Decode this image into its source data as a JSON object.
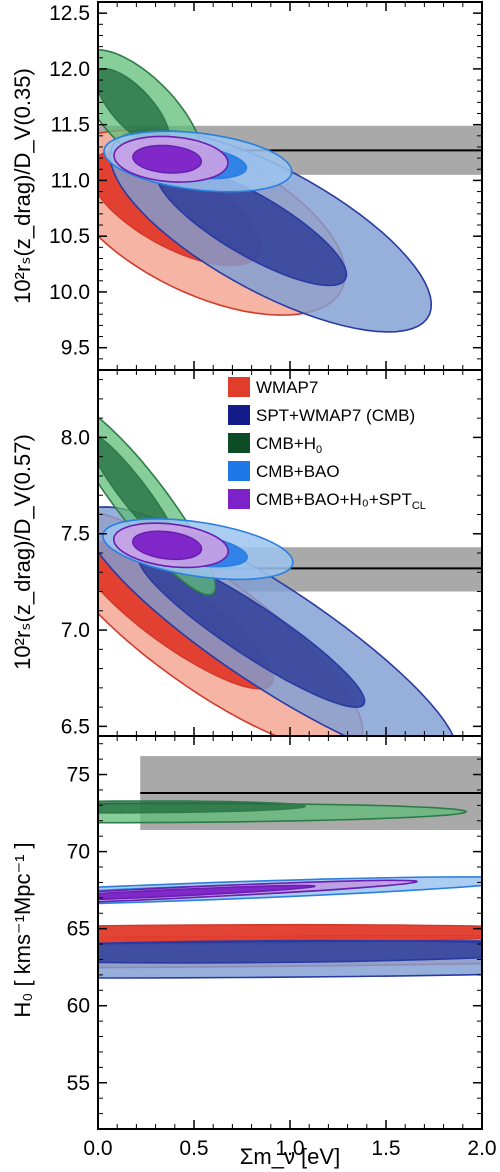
{
  "chart_data": [
    {
      "type": "contour",
      "ylabel": "10²rₛ(z_drag)/D_V(0.35)",
      "xlim": [
        0.0,
        2.0
      ],
      "ylim": [
        9.3,
        12.6
      ],
      "yticks": [
        "9.5",
        "10.0",
        "10.5",
        "11.0",
        "11.5",
        "12.0",
        "12.5"
      ],
      "measurement": {
        "value": 11.27,
        "low": 11.05,
        "high": 11.49,
        "x_from": 0.0,
        "x_to": 2.0
      },
      "contours": [
        {
          "series": "WMAP7",
          "level": "2sigma",
          "center": [
            0.55,
            10.62
          ],
          "slope": -1.23,
          "major": 0.98,
          "minor": 0.52
        },
        {
          "series": "WMAP7",
          "level": "1sigma",
          "center": [
            0.4,
            10.75
          ],
          "slope": -1.23,
          "major": 0.62,
          "minor": 0.28
        },
        {
          "series": "SPT+WMAP7 (CMB)",
          "level": "2sigma",
          "center": [
            0.9,
            10.55
          ],
          "slope": -1.12,
          "major": 1.15,
          "minor": 0.45
        },
        {
          "series": "SPT+WMAP7 (CMB)",
          "level": "1sigma",
          "center": [
            0.8,
            10.6
          ],
          "slope": -1.12,
          "major": 0.7,
          "minor": 0.22
        },
        {
          "series": "CMB+H0",
          "level": "2sigma",
          "center": [
            0.22,
            11.6
          ],
          "slope": -2.2,
          "major": 0.62,
          "minor": 0.22
        },
        {
          "series": "CMB+H0",
          "level": "1sigma",
          "center": [
            0.18,
            11.65
          ],
          "slope": -2.2,
          "major": 0.38,
          "minor": 0.12
        },
        {
          "series": "CMB+BAO",
          "level": "2sigma",
          "center": [
            0.52,
            11.17
          ],
          "slope": -0.25,
          "major": 0.5,
          "minor": 0.25
        },
        {
          "series": "CMB+BAO",
          "level": "1sigma",
          "center": [
            0.48,
            11.17
          ],
          "slope": -0.25,
          "major": 0.3,
          "minor": 0.14
        },
        {
          "series": "CMB+BAO+H0+SPT_CL",
          "level": "2sigma",
          "center": [
            0.38,
            11.19
          ],
          "slope": -0.2,
          "major": 0.3,
          "minor": 0.2
        },
        {
          "series": "CMB+BAO+H0+SPT_CL",
          "level": "1sigma",
          "center": [
            0.36,
            11.19
          ],
          "slope": -0.2,
          "major": 0.18,
          "minor": 0.12
        }
      ]
    },
    {
      "type": "contour",
      "ylabel": "10²rₛ(z_drag)/D_V(0.57)",
      "xlim": [
        0.0,
        2.0
      ],
      "ylim": [
        6.45,
        8.35
      ],
      "yticks": [
        "6.5",
        "7.0",
        "7.5",
        "8.0"
      ],
      "measurement": {
        "value": 7.32,
        "low": 7.2,
        "high": 7.43,
        "x_from": 0.0,
        "x_to": 2.0
      },
      "contours": [
        {
          "series": "WMAP7",
          "level": "2sigma",
          "center": [
            0.55,
            7.0
          ],
          "slope": -0.72,
          "major": 1.0,
          "minor": 0.29
        },
        {
          "series": "WMAP7",
          "level": "1sigma",
          "center": [
            0.4,
            7.08
          ],
          "slope": -0.72,
          "major": 0.62,
          "minor": 0.16
        },
        {
          "series": "SPT+WMAP7 (CMB)",
          "level": "2sigma",
          "center": [
            0.9,
            6.97
          ],
          "slope": -0.66,
          "major": 1.15,
          "minor": 0.26
        },
        {
          "series": "SPT+WMAP7 (CMB)",
          "level": "1sigma",
          "center": [
            0.8,
            7.0
          ],
          "slope": -0.66,
          "major": 0.7,
          "minor": 0.13
        },
        {
          "series": "CMB+H0",
          "level": "2sigma",
          "center": [
            0.22,
            7.68
          ],
          "slope": -1.3,
          "major": 0.62,
          "minor": 0.13
        },
        {
          "series": "CMB+H0",
          "level": "1sigma",
          "center": [
            0.18,
            7.72
          ],
          "slope": -1.3,
          "major": 0.38,
          "minor": 0.07
        },
        {
          "series": "CMB+BAO",
          "level": "2sigma",
          "center": [
            0.52,
            7.42
          ],
          "slope": -0.15,
          "major": 0.5,
          "minor": 0.14
        },
        {
          "series": "CMB+BAO",
          "level": "1sigma",
          "center": [
            0.48,
            7.42
          ],
          "slope": -0.15,
          "major": 0.3,
          "minor": 0.08
        },
        {
          "series": "CMB+BAO+H0+SPT_CL",
          "level": "2sigma",
          "center": [
            0.38,
            7.44
          ],
          "slope": -0.12,
          "major": 0.3,
          "minor": 0.11
        },
        {
          "series": "CMB+BAO+H0+SPT_CL",
          "level": "1sigma",
          "center": [
            0.36,
            7.44
          ],
          "slope": -0.12,
          "major": 0.18,
          "minor": 0.07
        }
      ]
    },
    {
      "type": "contour",
      "ylabel": "H₀ [ kms⁻¹Mpc⁻¹ ]",
      "xlabel": "Σm_ν [eV]",
      "xlim": [
        0.0,
        2.0
      ],
      "ylim": [
        52.0,
        77.5
      ],
      "xticks": [
        "0.0",
        "0.5",
        "1.0",
        "1.5",
        "2.0"
      ],
      "yticks": [
        "55",
        "60",
        "65",
        "70",
        "75"
      ],
      "measurement": {
        "value": 73.8,
        "low": 71.4,
        "high": 76.2,
        "x_from": 0.22,
        "x_to": 2.0
      },
      "contours": [
        {
          "series": "WMAP7",
          "level": "2sigma",
          "center": [
            0.55,
            63.5
          ],
          "slope": -9.5,
          "major": 0.98,
          "minor": 3.9
        },
        {
          "series": "WMAP7",
          "level": "1sigma",
          "center": [
            0.4,
            64.6
          ],
          "slope": -9.5,
          "major": 0.62,
          "minor": 2.1
        },
        {
          "series": "SPT+WMAP7 (CMB)",
          "level": "2sigma",
          "center": [
            0.9,
            63.0
          ],
          "slope": -8.8,
          "major": 1.15,
          "minor": 3.4
        },
        {
          "series": "SPT+WMAP7 (CMB)",
          "level": "1sigma",
          "center": [
            0.8,
            63.5
          ],
          "slope": -8.8,
          "major": 0.7,
          "minor": 1.7
        },
        {
          "series": "CMB+H0",
          "level": "2sigma",
          "center": [
            0.22,
            72.5
          ],
          "slope": -17.0,
          "major": 0.62,
          "minor": 1.7
        },
        {
          "series": "CMB+H0",
          "level": "1sigma",
          "center": [
            0.18,
            72.9
          ],
          "slope": -17.0,
          "major": 0.38,
          "minor": 0.9
        },
        {
          "series": "CMB+BAO",
          "level": "2sigma",
          "center": [
            0.52,
            67.4
          ],
          "slope": -2.0,
          "major": 0.5,
          "minor": 1.9
        },
        {
          "series": "CMB+BAO",
          "level": "1sigma",
          "center": [
            0.48,
            67.4
          ],
          "slope": -2.0,
          "major": 0.3,
          "minor": 1.1
        },
        {
          "series": "CMB+BAO+H0+SPT_CL",
          "level": "2sigma",
          "center": [
            0.38,
            67.3
          ],
          "slope": -1.6,
          "major": 0.3,
          "minor": 1.5
        },
        {
          "series": "CMB+BAO+H0+SPT_CL",
          "level": "1sigma",
          "center": [
            0.36,
            67.3
          ],
          "slope": -1.6,
          "major": 0.18,
          "minor": 0.9
        }
      ]
    }
  ],
  "legend": {
    "placement": "panel-2-top-right",
    "items": [
      {
        "key": "WMAP7",
        "main": "WMAP7",
        "sub": ""
      },
      {
        "key": "SPT+WMAP7 (CMB)",
        "main": "SPT+WMAP7 (CMB)",
        "sub": ""
      },
      {
        "key": "CMB+H0",
        "main": "CMB+H",
        "sub": "0"
      },
      {
        "key": "CMB+BAO",
        "main": "CMB+BAO",
        "sub": ""
      },
      {
        "key": "CMB+BAO+H0+SPT_CL",
        "main": "CMB+BAO+H₀+SPT",
        "sub": "CL"
      }
    ]
  },
  "series_style": {
    "WMAP7": {
      "legend": "#e03e2a",
      "fill2": "#f4b09f",
      "fill1": "#e03b2b",
      "edge": "#d23a2a",
      "opacity": 0.95
    },
    "SPT+WMAP7 (CMB)": {
      "legend": "#141c8a",
      "fill2": "#7f9fd3",
      "fill1": "#2c3c97",
      "edge": "#2a3aa3",
      "opacity": 0.82
    },
    "CMB+H0": {
      "legend": "#0d4d26",
      "fill2": "#5fbe7a",
      "fill1": "#1f6a3c",
      "edge": "#2e7b48",
      "opacity": 0.75
    },
    "CMB+BAO": {
      "legend": "#1e78e8",
      "fill2": "#9ec4f0",
      "fill1": "#1e78e8",
      "edge": "#2a7fe0",
      "opacity": 0.85
    },
    "CMB+BAO+H0+SPT_CL": {
      "legend": "#7d22c8",
      "fill2": "#c5a0e5",
      "fill1": "#7d22c8",
      "edge": "#6b1fb0",
      "opacity": 0.95
    }
  },
  "measurement_style": {
    "band": "#a9a9a9",
    "line": "#000000"
  }
}
